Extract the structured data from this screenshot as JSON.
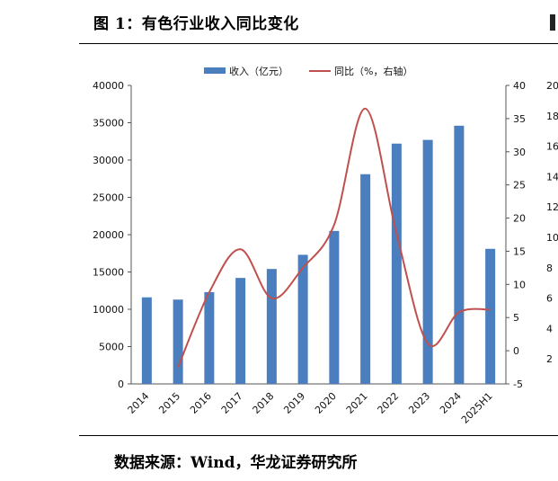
{
  "figure": {
    "title": "图 1：有色行业收入同比变化",
    "source": "数据来源：Wind，华龙证券研究所"
  },
  "chart_data": {
    "type": "bar",
    "categories": [
      "2014",
      "2015",
      "2016",
      "2017",
      "2018",
      "2019",
      "2020",
      "2021",
      "2022",
      "2023",
      "2024",
      "2025H1"
    ],
    "series": [
      {
        "name": "收入（亿元）",
        "type": "bar",
        "axis": "left",
        "values": [
          11600,
          11300,
          12300,
          14200,
          15400,
          17300,
          20500,
          28100,
          32200,
          32700,
          34600,
          18100
        ]
      },
      {
        "name": "同比（%，右轴）",
        "type": "line",
        "axis": "right",
        "values": [
          null,
          -2.5,
          8.8,
          15.3,
          7.9,
          12.5,
          19.0,
          36.5,
          17.6,
          1.1,
          5.8,
          6.2
        ]
      }
    ],
    "y_left": {
      "ylim": [
        0,
        40000
      ],
      "ticks": [
        0,
        5000,
        10000,
        15000,
        20000,
        25000,
        30000,
        35000,
        40000
      ]
    },
    "y_right": {
      "ylim": [
        -5,
        40
      ],
      "ticks": [
        -5,
        0,
        5,
        10,
        15,
        20,
        25,
        30,
        35,
        40
      ]
    },
    "cutoff_axis_ticks": [
      "20",
      "18",
      "16",
      "14",
      "12",
      "10",
      "8",
      "6",
      "4",
      "2"
    ],
    "legend": "top-center",
    "grid": false,
    "colors": {
      "bar": "#4a7ebf",
      "line": "#c0504d",
      "axis": "#555555"
    }
  }
}
